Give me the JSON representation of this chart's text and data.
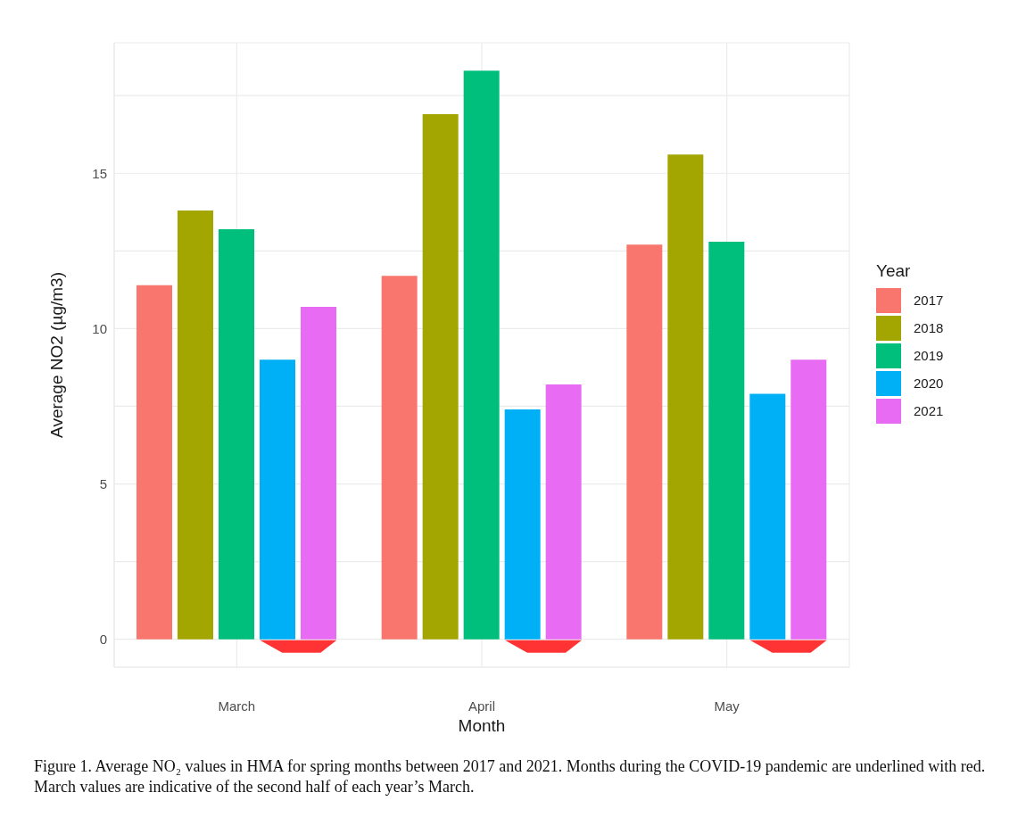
{
  "chart_data": {
    "type": "bar",
    "xlabel": "Month",
    "ylabel": "Average NO2 (µg/m3)",
    "legend_title": "Year",
    "categories": [
      "March",
      "April",
      "May"
    ],
    "series": [
      {
        "name": "2017",
        "color": "#f8766d",
        "values": [
          11.4,
          11.7,
          12.7
        ]
      },
      {
        "name": "2018",
        "color": "#a3a500",
        "values": [
          13.8,
          16.9,
          15.6
        ]
      },
      {
        "name": "2019",
        "color": "#00bf7d",
        "values": [
          13.2,
          18.3,
          12.8
        ]
      },
      {
        "name": "2020",
        "color": "#00b0f6",
        "values": [
          9.0,
          7.4,
          7.9
        ]
      },
      {
        "name": "2021",
        "color": "#e76bf3",
        "values": [
          10.7,
          8.2,
          9.0
        ]
      }
    ],
    "ylim": [
      -0.9,
      19.2
    ],
    "yticks": [
      0,
      {
        "value": 2.5,
        "label": null
      },
      5,
      {
        "value": 7.5,
        "label": null
      },
      10,
      {
        "value": 12.5,
        "label": null
      },
      15,
      {
        "value": 17.5,
        "label": null
      }
    ],
    "grid": true,
    "legend": "right",
    "annotations": [
      "Figure 1. Average NO₂ values in HMA for spring months between 2017 and 2021. Months during the COVID-19 pandemic are underlined with red. March values are indicative of the second half of each year’s March."
    ]
  }
}
